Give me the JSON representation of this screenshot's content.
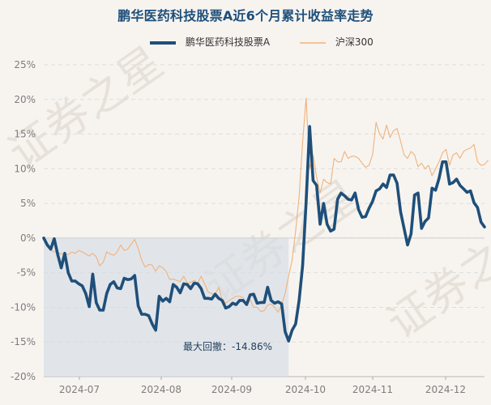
{
  "chart_data": {
    "type": "line",
    "title": "鹏华医药科技股票A近6个月累计收益率走势",
    "xlabel": "",
    "ylabel": "",
    "ylim": [
      -20,
      25
    ],
    "y_ticks": [
      "25%",
      "20%",
      "15%",
      "10%",
      "5%",
      "0%",
      "-5%",
      "-10%",
      "-15%",
      "-20%"
    ],
    "x_ticks": [
      "2024-07",
      "2024-08",
      "2024-09",
      "2024-10",
      "2024-11",
      "2024-12"
    ],
    "grid": true,
    "legend_placement": "top-center",
    "series": [
      {
        "name": "鹏华医药科技股票A",
        "color": "#1f4f7a",
        "style": "bold-line",
        "values": [
          0.0,
          -1.0,
          -1.6,
          -0.1,
          -2.4,
          -4.3,
          -2.2,
          -5.0,
          -6.2,
          -6.2,
          -6.6,
          -6.9,
          -8.0,
          -9.9,
          -5.2,
          -9.3,
          -10.4,
          -10.4,
          -8.0,
          -6.7,
          -6.3,
          -7.2,
          -7.3,
          -5.8,
          -6.0,
          -5.9,
          -5.4,
          -9.8,
          -11.0,
          -11.0,
          -11.2,
          -12.4,
          -13.3,
          -8.4,
          -9.1,
          -8.7,
          -9.2,
          -6.7,
          -7.1,
          -7.9,
          -6.6,
          -6.7,
          -7.3,
          -6.5,
          -6.6,
          -7.3,
          -8.7,
          -8.7,
          -8.8,
          -8.1,
          -8.7,
          -9.0,
          -10.1,
          -9.9,
          -9.4,
          -9.6,
          -9.0,
          -9.0,
          -9.6,
          -8.2,
          -8.1,
          -9.4,
          -9.3,
          -9.3,
          -7.1,
          -9.0,
          -9.4,
          -9.2,
          -9.5,
          -13.5,
          -14.86,
          -13.3,
          -12.4,
          -9.0,
          -4.0,
          5.2,
          16.1,
          8.3,
          7.6,
          2.0,
          5.0,
          2.0,
          1.0,
          1.3,
          5.6,
          6.5,
          6.1,
          5.6,
          5.5,
          6.5,
          4.1,
          3.0,
          3.1,
          4.3,
          5.3,
          6.8,
          7.1,
          7.8,
          7.3,
          9.1,
          9.1,
          7.9,
          3.8,
          1.4,
          -1.0,
          0.6,
          6.2,
          6.5,
          1.4,
          2.4,
          2.9,
          7.2,
          6.9,
          8.6,
          11.0,
          11.0,
          7.8,
          8.0,
          8.5,
          7.6,
          7.1,
          6.6,
          6.8,
          5.1,
          4.4,
          2.3,
          1.6
        ]
      },
      {
        "name": "沪深300",
        "color": "#f0b27a",
        "style": "thin-line",
        "values": [
          -0.2,
          -1.0,
          -1.8,
          -2.0,
          -2.1,
          -2.3,
          -2.2,
          -2.4,
          -2.0,
          -2.2,
          -1.8,
          -2.0,
          -2.3,
          -2.6,
          -2.2,
          -2.7,
          -4.0,
          -3.5,
          -2.0,
          -2.3,
          -2.5,
          -2.0,
          -1.0,
          -1.8,
          -1.6,
          -0.9,
          -0.2,
          -1.5,
          -3.2,
          -4.2,
          -3.8,
          -3.9,
          -4.8,
          -4.0,
          -4.3,
          -4.8,
          -6.0,
          -5.9,
          -6.1,
          -6.3,
          -5.5,
          -6.5,
          -6.4,
          -6.1,
          -6.5,
          -5.5,
          -6.6,
          -7.8,
          -8.0,
          -8.1,
          -7.1,
          -8.9,
          -9.4,
          -9.0,
          -8.7,
          -8.4,
          -8.4,
          -8.6,
          -9.7,
          -8.9,
          -10.0,
          -10.0,
          -10.6,
          -10.5,
          -9.7,
          -9.5,
          -10.0,
          -10.7,
          -9.6,
          -8.0,
          -5.5,
          -3.2,
          1.0,
          6.0,
          13.8,
          20.2,
          10.0,
          12.0,
          8.8,
          6.5,
          8.5,
          8.0,
          7.8,
          11.5,
          11.0,
          11.0,
          12.5,
          11.5,
          11.8,
          11.8,
          11.5,
          10.8,
          10.2,
          10.5,
          12.0,
          16.7,
          15.0,
          14.3,
          16.3,
          14.5,
          15.5,
          15.8,
          14.0,
          12.0,
          11.5,
          12.5,
          12.0,
          10.3,
          10.8,
          10.0,
          10.5,
          9.0,
          10.0,
          11.0,
          12.3,
          12.8,
          10.5,
          12.0,
          12.3,
          11.5,
          12.5,
          12.8,
          13.0,
          13.5,
          11.0,
          10.5,
          10.6,
          11.2
        ]
      }
    ],
    "annotations": [
      {
        "text": "最大回撤：-14.86%"
      }
    ],
    "watermark": "证券之星"
  }
}
